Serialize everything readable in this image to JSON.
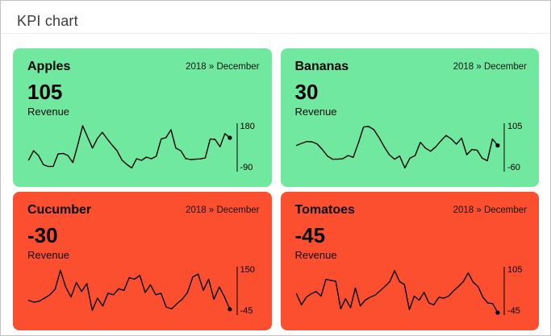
{
  "page": {
    "title": "KPI chart"
  },
  "colors": {
    "positive_bg": "#70e8a0",
    "negative_bg": "#fc4f30",
    "sparkline": "#000000",
    "axis_line": "rgba(0,0,0,0.5)",
    "page_border": "#c2c2c2"
  },
  "cards": [
    {
      "name": "Apples",
      "period": "2018 » December",
      "value": "105",
      "metric": "Revenue",
      "trend": "positive",
      "axis_max": "180",
      "axis_min": "-90"
    },
    {
      "name": "Bananas",
      "period": "2018 » December",
      "value": "30",
      "metric": "Revenue",
      "trend": "positive",
      "axis_max": "105",
      "axis_min": "-60"
    },
    {
      "name": "Cucumber",
      "period": "2018 » December",
      "value": "-30",
      "metric": "Revenue",
      "trend": "negative",
      "axis_max": "150",
      "axis_min": "-45"
    },
    {
      "name": "Tomatoes",
      "period": "2018 » December",
      "value": "-45",
      "metric": "Revenue",
      "trend": "negative",
      "axis_max": "105",
      "axis_min": "-45"
    }
  ],
  "chart_data": [
    {
      "type": "line",
      "title": "Apples Revenue",
      "xlabel": "",
      "ylabel": "Revenue",
      "ylim": [
        -90,
        180
      ],
      "current": 105,
      "grid": false,
      "legend": "none",
      "series": [
        {
          "name": "Revenue",
          "values": [
            -33,
            25,
            -5,
            -62,
            -73,
            -72,
            5,
            8,
            -5,
            -49,
            60,
            180,
            110,
            41,
            100,
            139,
            98,
            60,
            25,
            -33,
            -60,
            -82,
            -25,
            -35,
            -15,
            -25,
            -10,
            98,
            106,
            155,
            41,
            25,
            -24,
            -30,
            -28,
            -26,
            -20,
            98,
            95,
            49,
            131,
            105
          ]
        }
      ]
    },
    {
      "type": "line",
      "title": "Bananas Revenue",
      "xlabel": "",
      "ylabel": "Revenue",
      "ylim": [
        -60,
        105
      ],
      "current": 30,
      "grid": false,
      "legend": "none",
      "series": [
        {
          "name": "Revenue",
          "values": [
            30,
            38,
            45,
            44,
            36,
            15,
            -10,
            -22,
            -22,
            -20,
            -8,
            -15,
            40,
            100,
            102,
            90,
            60,
            25,
            -5,
            -22,
            -10,
            -55,
            -18,
            -8,
            42,
            20,
            8,
            25,
            48,
            68,
            55,
            35,
            58,
            -5,
            15,
            12,
            -18,
            -28,
            55,
            30
          ]
        }
      ]
    },
    {
      "type": "line",
      "title": "Cucumber Revenue",
      "xlabel": "",
      "ylabel": "Revenue",
      "ylim": [
        -45,
        150
      ],
      "current": -30,
      "grid": false,
      "legend": "none",
      "series": [
        {
          "name": "Revenue",
          "values": [
            10,
            2,
            6,
            20,
            35,
            60,
            145,
            70,
            25,
            90,
            50,
            85,
            -35,
            20,
            -15,
            42,
            35,
            62,
            55,
            112,
            105,
            122,
            45,
            80,
            35,
            42,
            -20,
            -28,
            -5,
            15,
            45,
            115,
            128,
            55,
            105,
            15,
            70,
            25,
            -30
          ]
        }
      ]
    },
    {
      "type": "line",
      "title": "Tomatoes Revenue",
      "xlabel": "",
      "ylabel": "Revenue",
      "ylim": [
        -45,
        105
      ],
      "current": -45,
      "grid": false,
      "legend": "none",
      "series": [
        {
          "name": "Revenue",
          "values": [
            20,
            -18,
            8,
            20,
            28,
            12,
            70,
            66,
            63,
            -32,
            3,
            -28,
            40,
            -22,
            -2,
            8,
            15,
            30,
            45,
            62,
            100,
            62,
            52,
            -35,
            12,
            -2,
            25,
            -12,
            -18,
            8,
            5,
            12,
            30,
            45,
            62,
            92,
            60,
            45,
            8,
            -12,
            -14,
            -45
          ]
        }
      ]
    }
  ]
}
